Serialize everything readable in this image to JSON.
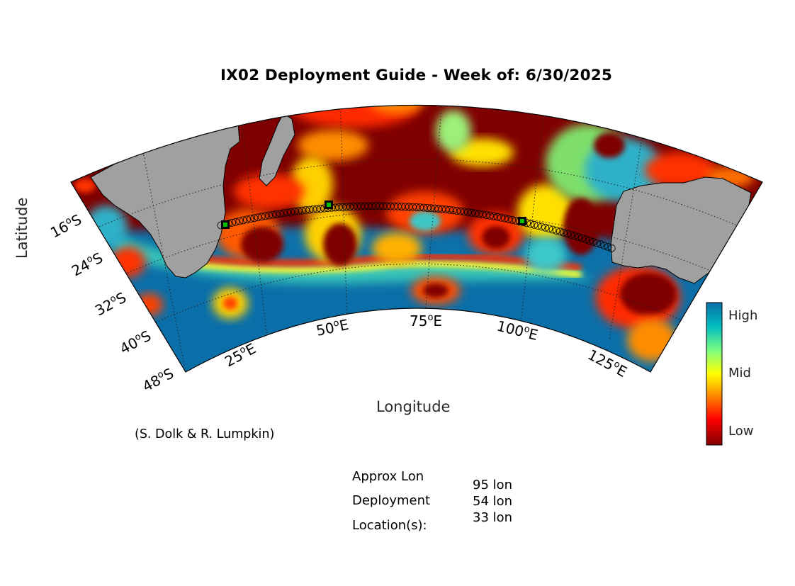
{
  "title": "IX02 Deployment Guide - Week of: 6/30/2025",
  "xlabel": "Longitude",
  "ylabel": "Latitude",
  "credit": "(S. Dolk & R. Lumpkin)",
  "colorbar": {
    "high": "High",
    "mid": "Mid",
    "low": "Low",
    "colors": [
      "#7f0000",
      "#ff0000",
      "#ff8c00",
      "#ffff00",
      "#7fff7f",
      "#00bfbf",
      "#0a6fa8"
    ]
  },
  "lon_ticks": [
    {
      "deg": "25",
      "suffix": "E"
    },
    {
      "deg": "50",
      "suffix": "E"
    },
    {
      "deg": "75",
      "suffix": "E"
    },
    {
      "deg": "100",
      "suffix": "E"
    },
    {
      "deg": "125",
      "suffix": "E"
    }
  ],
  "lat_ticks": [
    {
      "deg": "16",
      "suffix": "S"
    },
    {
      "deg": "24",
      "suffix": "S"
    },
    {
      "deg": "32",
      "suffix": "S"
    },
    {
      "deg": "40",
      "suffix": "S"
    },
    {
      "deg": "48",
      "suffix": "S"
    }
  ],
  "deployment": {
    "label_line1": "Approx Lon",
    "label_line2": "Deployment",
    "label_line3": "Location(s):",
    "values": [
      "95 lon",
      "54 lon",
      "33 lon"
    ]
  },
  "land_color": "#a0a0a0",
  "ocean_colors": {
    "dark_red": "#7f0000",
    "deep_blue": "#0a6fa8"
  }
}
